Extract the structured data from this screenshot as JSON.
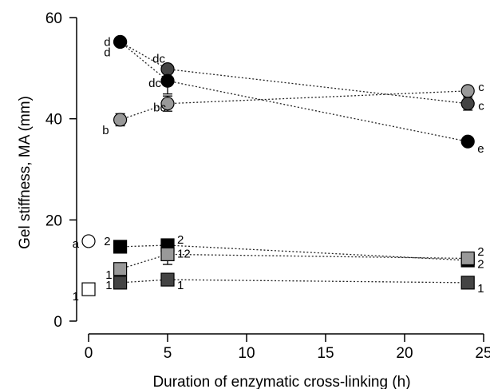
{
  "chart_data": {
    "type": "scatter",
    "xlabel": "Duration of enzymatic cross-linking (h)",
    "ylabel": "Gel stiffness, MA (mm)",
    "xlim": [
      0,
      25
    ],
    "ylim": [
      0,
      60
    ],
    "xticks": [
      "0",
      "5",
      "10",
      "15",
      "20",
      "25"
    ],
    "yticks": [
      "0",
      "20",
      "40",
      "60"
    ],
    "grid": false,
    "legend": "none",
    "series": [
      {
        "marker": "circle",
        "fill": "#ffffff",
        "x": [
          0
        ],
        "y": [
          15.8
        ],
        "yerr": [
          0.3
        ],
        "labels": [
          "a"
        ]
      },
      {
        "marker": "circle",
        "fill": "#999999",
        "x": [
          2,
          5,
          24
        ],
        "y": [
          39.8,
          43.0,
          45.5
        ],
        "yerr": [
          1.2,
          1.5,
          0.5
        ],
        "labels": [
          "b",
          "bc",
          "c"
        ]
      },
      {
        "marker": "circle",
        "fill": "#444444",
        "x": [
          2,
          5,
          24
        ],
        "y": [
          55.2,
          49.8,
          43.0
        ],
        "yerr": [
          0.4,
          0.6,
          1.3
        ],
        "labels": [
          "d",
          "dc",
          "c"
        ]
      },
      {
        "marker": "circle",
        "fill": "#000000",
        "x": [
          2,
          5,
          24
        ],
        "y": [
          55.2,
          47.5,
          35.5
        ],
        "yerr": [
          0.4,
          2.6,
          0.5
        ],
        "labels": [
          "d",
          "dc",
          "e"
        ]
      },
      {
        "marker": "square",
        "fill": "#ffffff",
        "x": [
          0
        ],
        "y": [
          6.3
        ],
        "yerr": [
          0.3
        ],
        "labels": [
          "1"
        ]
      },
      {
        "marker": "square",
        "fill": "#000000",
        "x": [
          2,
          5,
          24
        ],
        "y": [
          14.7,
          15.0,
          12.0
        ],
        "yerr": [
          0.3,
          0.4,
          0.5
        ],
        "labels": [
          "2",
          "2",
          "2"
        ]
      },
      {
        "marker": "square",
        "fill": "#999999",
        "x": [
          2,
          5,
          24
        ],
        "y": [
          10.3,
          13.2,
          12.4
        ],
        "yerr": [
          0.6,
          2.0,
          0.7
        ],
        "labels": [
          "1",
          "12",
          "2"
        ]
      },
      {
        "marker": "square",
        "fill": "#444444",
        "x": [
          2,
          5,
          24
        ],
        "y": [
          7.6,
          8.2,
          7.6
        ],
        "yerr": [
          0.3,
          0.3,
          0.3
        ],
        "labels": [
          "1",
          "1",
          "1"
        ]
      }
    ]
  }
}
